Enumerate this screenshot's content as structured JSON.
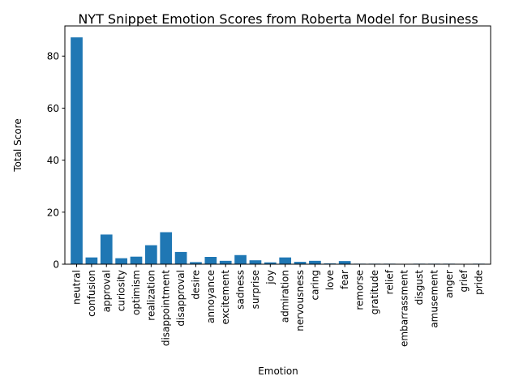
{
  "chart_data": {
    "type": "bar",
    "title": "NYT Snippet Emotion Scores from Roberta Model for Business",
    "xlabel": "Emotion",
    "ylabel": "Total Score",
    "categories": [
      "neutral",
      "confusion",
      "approval",
      "curiosity",
      "optimism",
      "realization",
      "disappointment",
      "disapproval",
      "desire",
      "annoyance",
      "excitement",
      "sadness",
      "surprise",
      "joy",
      "admiration",
      "nervousness",
      "caring",
      "love",
      "fear",
      "remorse",
      "gratitude",
      "relief",
      "embarrassment",
      "disgust",
      "amusement",
      "anger",
      "grief",
      "pride"
    ],
    "values": [
      87.2,
      2.6,
      11.4,
      2.3,
      2.9,
      7.3,
      12.3,
      4.7,
      0.8,
      2.8,
      1.3,
      3.5,
      1.5,
      0.7,
      2.6,
      0.9,
      1.3,
      0.3,
      1.2,
      0.2,
      0.2,
      0.2,
      0.15,
      0.2,
      0.2,
      0.2,
      0.15,
      0.2
    ],
    "ylim": [
      0,
      91.6
    ],
    "yticks": [
      0,
      20,
      40,
      60,
      80
    ],
    "grid": false,
    "bar_color": "#1f77b4"
  }
}
